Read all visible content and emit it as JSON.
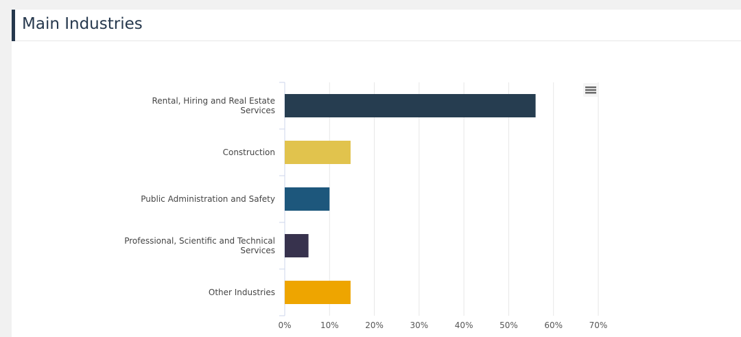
{
  "header": {
    "title": "Main Industries"
  },
  "menu": {
    "icon": "hamburger-menu-icon"
  },
  "chart_data": {
    "type": "bar",
    "orientation": "horizontal",
    "title": "",
    "xlabel": "",
    "ylabel": "",
    "categories": [
      [
        "Rental, Hiring and Real Estate",
        "Services"
      ],
      [
        "Construction"
      ],
      [
        "Public Administration and Safety"
      ],
      [
        "Professional, Scientific and Technical",
        "Services"
      ],
      [
        "Other Industries"
      ]
    ],
    "values": [
      56,
      14.7,
      10,
      5.3,
      14.7
    ],
    "colors": [
      "#263d50",
      "#e1c34d",
      "#1d577c",
      "#37324d",
      "#eea500"
    ],
    "xlim": [
      0,
      70
    ],
    "ticks": [
      "0%",
      "10%",
      "20%",
      "30%",
      "40%",
      "50%",
      "60%",
      "70%"
    ],
    "tick_values": [
      0,
      10,
      20,
      30,
      40,
      50,
      60,
      70
    ],
    "grid": true
  }
}
